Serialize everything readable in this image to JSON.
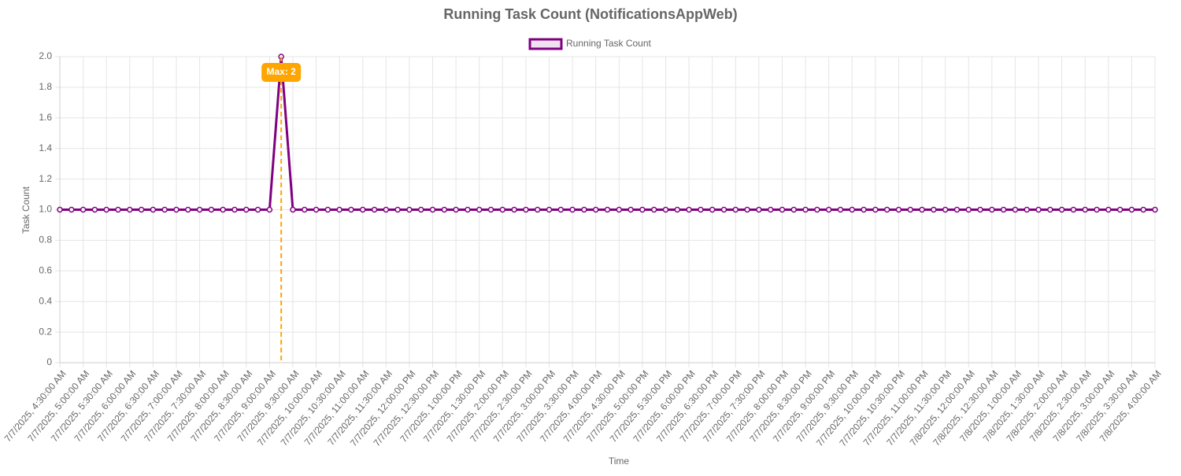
{
  "chart_data": {
    "type": "line",
    "title": "Running Task Count (NotificationsAppWeb)",
    "x_label": "Time",
    "y_label": "Task Count",
    "categories": [
      "7/7/2025, 4:30:00 AM",
      null,
      "7/7/2025, 5:00:00 AM",
      null,
      "7/7/2025, 5:30:00 AM",
      null,
      "7/7/2025, 6:00:00 AM",
      null,
      "7/7/2025, 6:30:00 AM",
      null,
      "7/7/2025, 7:00:00 AM",
      null,
      "7/7/2025, 7:30:00 AM",
      null,
      "7/7/2025, 8:00:00 AM",
      null,
      "7/7/2025, 8:30:00 AM",
      null,
      "7/7/2025, 9:00:00 AM",
      null,
      "7/7/2025, 9:30:00 AM",
      null,
      "7/7/2025, 10:00:00 AM",
      null,
      "7/7/2025, 10:30:00 AM",
      null,
      "7/7/2025, 11:00:00 AM",
      null,
      "7/7/2025, 11:30:00 AM",
      null,
      "7/7/2025, 12:00:00 PM",
      null,
      "7/7/2025, 12:30:00 PM",
      null,
      "7/7/2025, 1:00:00 PM",
      null,
      "7/7/2025, 1:30:00 PM",
      null,
      "7/7/2025, 2:00:00 PM",
      null,
      "7/7/2025, 2:30:00 PM",
      null,
      "7/7/2025, 3:00:00 PM",
      null,
      "7/7/2025, 3:30:00 PM",
      null,
      "7/7/2025, 4:00:00 PM",
      null,
      "7/7/2025, 4:30:00 PM",
      null,
      "7/7/2025, 5:00:00 PM",
      null,
      "7/7/2025, 5:30:00 PM",
      null,
      "7/7/2025, 6:00:00 PM",
      null,
      "7/7/2025, 6:30:00 PM",
      null,
      "7/7/2025, 7:00:00 PM",
      null,
      "7/7/2025, 7:30:00 PM",
      null,
      "7/7/2025, 8:00:00 PM",
      null,
      "7/7/2025, 8:30:00 PM",
      null,
      "7/7/2025, 9:00:00 PM",
      null,
      "7/7/2025, 9:30:00 PM",
      null,
      "7/7/2025, 10:00:00 PM",
      null,
      "7/7/2025, 10:30:00 PM",
      null,
      "7/7/2025, 11:00:00 PM",
      null,
      "7/7/2025, 11:30:00 PM",
      null,
      "7/8/2025, 12:00:00 AM",
      null,
      "7/8/2025, 12:30:00 AM",
      null,
      "7/8/2025, 1:00:00 AM",
      null,
      "7/8/2025, 1:30:00 AM",
      null,
      "7/8/2025, 2:00:00 AM",
      null,
      "7/8/2025, 2:30:00 AM",
      null,
      "7/8/2025, 3:00:00 AM",
      null,
      "7/8/2025, 3:30:00 AM",
      null,
      "7/8/2025, 4:00:00 AM"
    ],
    "series": [
      {
        "name": "Running Task Count",
        "color": "#800080",
        "values": [
          1,
          1,
          1,
          1,
          1,
          1,
          1,
          1,
          1,
          1,
          1,
          1,
          1,
          1,
          1,
          1,
          1,
          1,
          1,
          2,
          1,
          1,
          1,
          1,
          1,
          1,
          1,
          1,
          1,
          1,
          1,
          1,
          1,
          1,
          1,
          1,
          1,
          1,
          1,
          1,
          1,
          1,
          1,
          1,
          1,
          1,
          1,
          1,
          1,
          1,
          1,
          1,
          1,
          1,
          1,
          1,
          1,
          1,
          1,
          1,
          1,
          1,
          1,
          1,
          1,
          1,
          1,
          1,
          1,
          1,
          1,
          1,
          1,
          1,
          1,
          1,
          1,
          1,
          1,
          1,
          1,
          1,
          1,
          1,
          1,
          1,
          1,
          1,
          1,
          1,
          1,
          1,
          1,
          1,
          1
        ]
      }
    ],
    "annotation": {
      "text": "Max: 2",
      "color": "#FFA500"
    },
    "ylim": [
      0,
      2
    ],
    "yticks": [
      0,
      0.2,
      0.4,
      0.6,
      0.8,
      {
        "value": 1,
        "label": "1.0"
      },
      1.2,
      1.4,
      1.6,
      1.8,
      {
        "value": 2,
        "label": "2.0"
      }
    ],
    "grid": true,
    "legend": "top"
  }
}
